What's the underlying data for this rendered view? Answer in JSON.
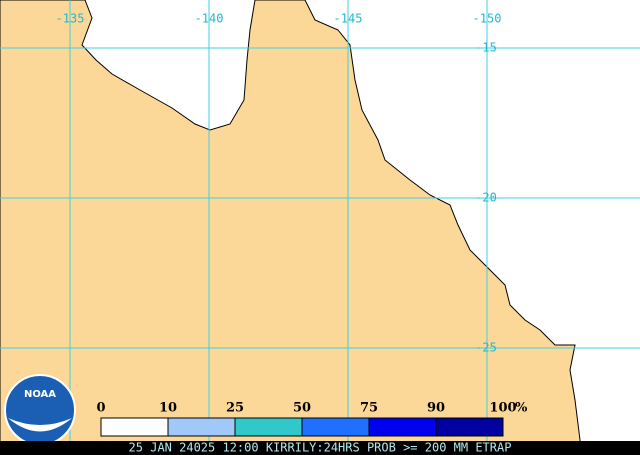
{
  "map": {
    "longitude_labels": [
      -135,
      -140,
      -145,
      -150
    ],
    "latitude_labels": [
      -15,
      -20,
      -25
    ]
  },
  "legend": {
    "ticks": [
      0,
      10,
      25,
      50,
      75,
      90,
      100
    ],
    "unit": "%",
    "colors": [
      "#ffffff",
      "#a0c8f8",
      "#30c8c8",
      "#2070ff",
      "#0000f0",
      "#0000a0"
    ]
  },
  "logo": "NOAA",
  "footer": "25 JAN 24025 12:00 KIRRILY:24HRS PROB >= 200 MM ETRAP"
}
